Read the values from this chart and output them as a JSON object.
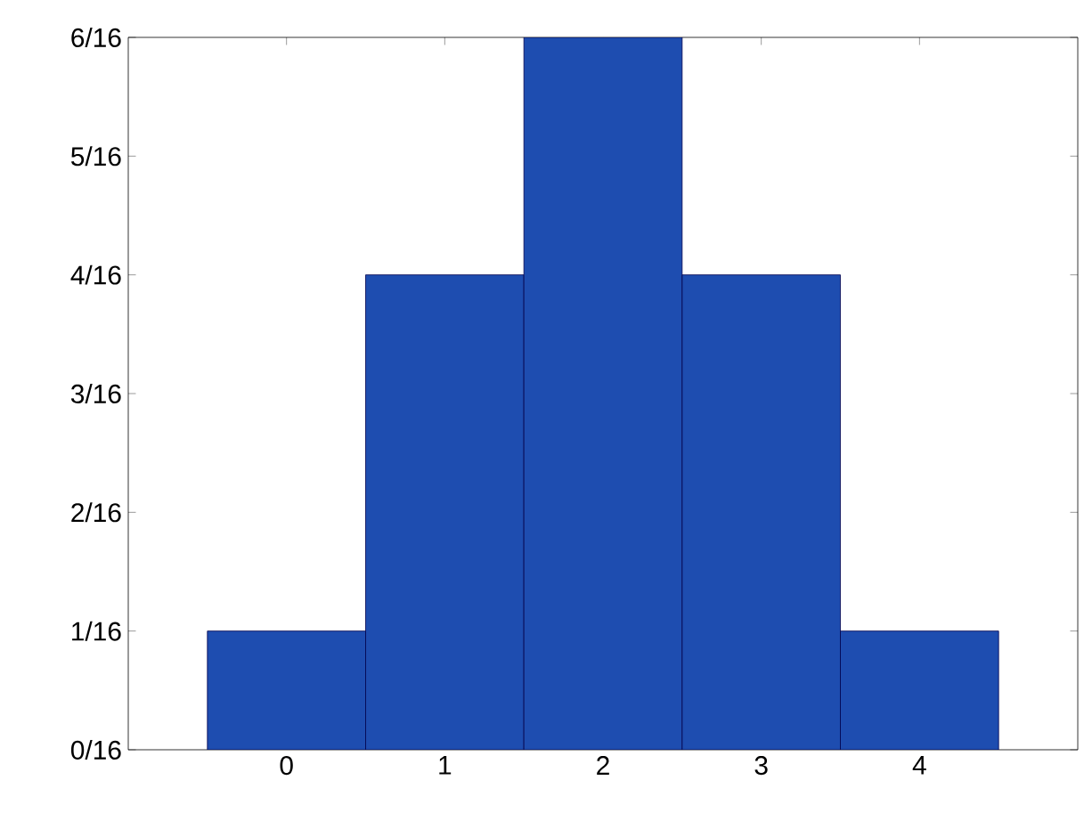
{
  "chart_data": {
    "type": "bar",
    "categories": [
      "0",
      "1",
      "2",
      "3",
      "4"
    ],
    "values": [
      0.0625,
      0.25,
      0.375,
      0.25,
      0.0625
    ],
    "color": "#1e4db0",
    "ylim": [
      0,
      0.375
    ],
    "yticks": [
      {
        "value": 0,
        "label": "0/16"
      },
      {
        "value": 0.0625,
        "label": "1/16"
      },
      {
        "value": 0.125,
        "label": "2/16"
      },
      {
        "value": 0.1875,
        "label": "3/16"
      },
      {
        "value": 0.25,
        "label": "4/16"
      },
      {
        "value": 0.3125,
        "label": "5/16"
      },
      {
        "value": 0.375,
        "label": "6/16"
      }
    ],
    "grid": false
  }
}
